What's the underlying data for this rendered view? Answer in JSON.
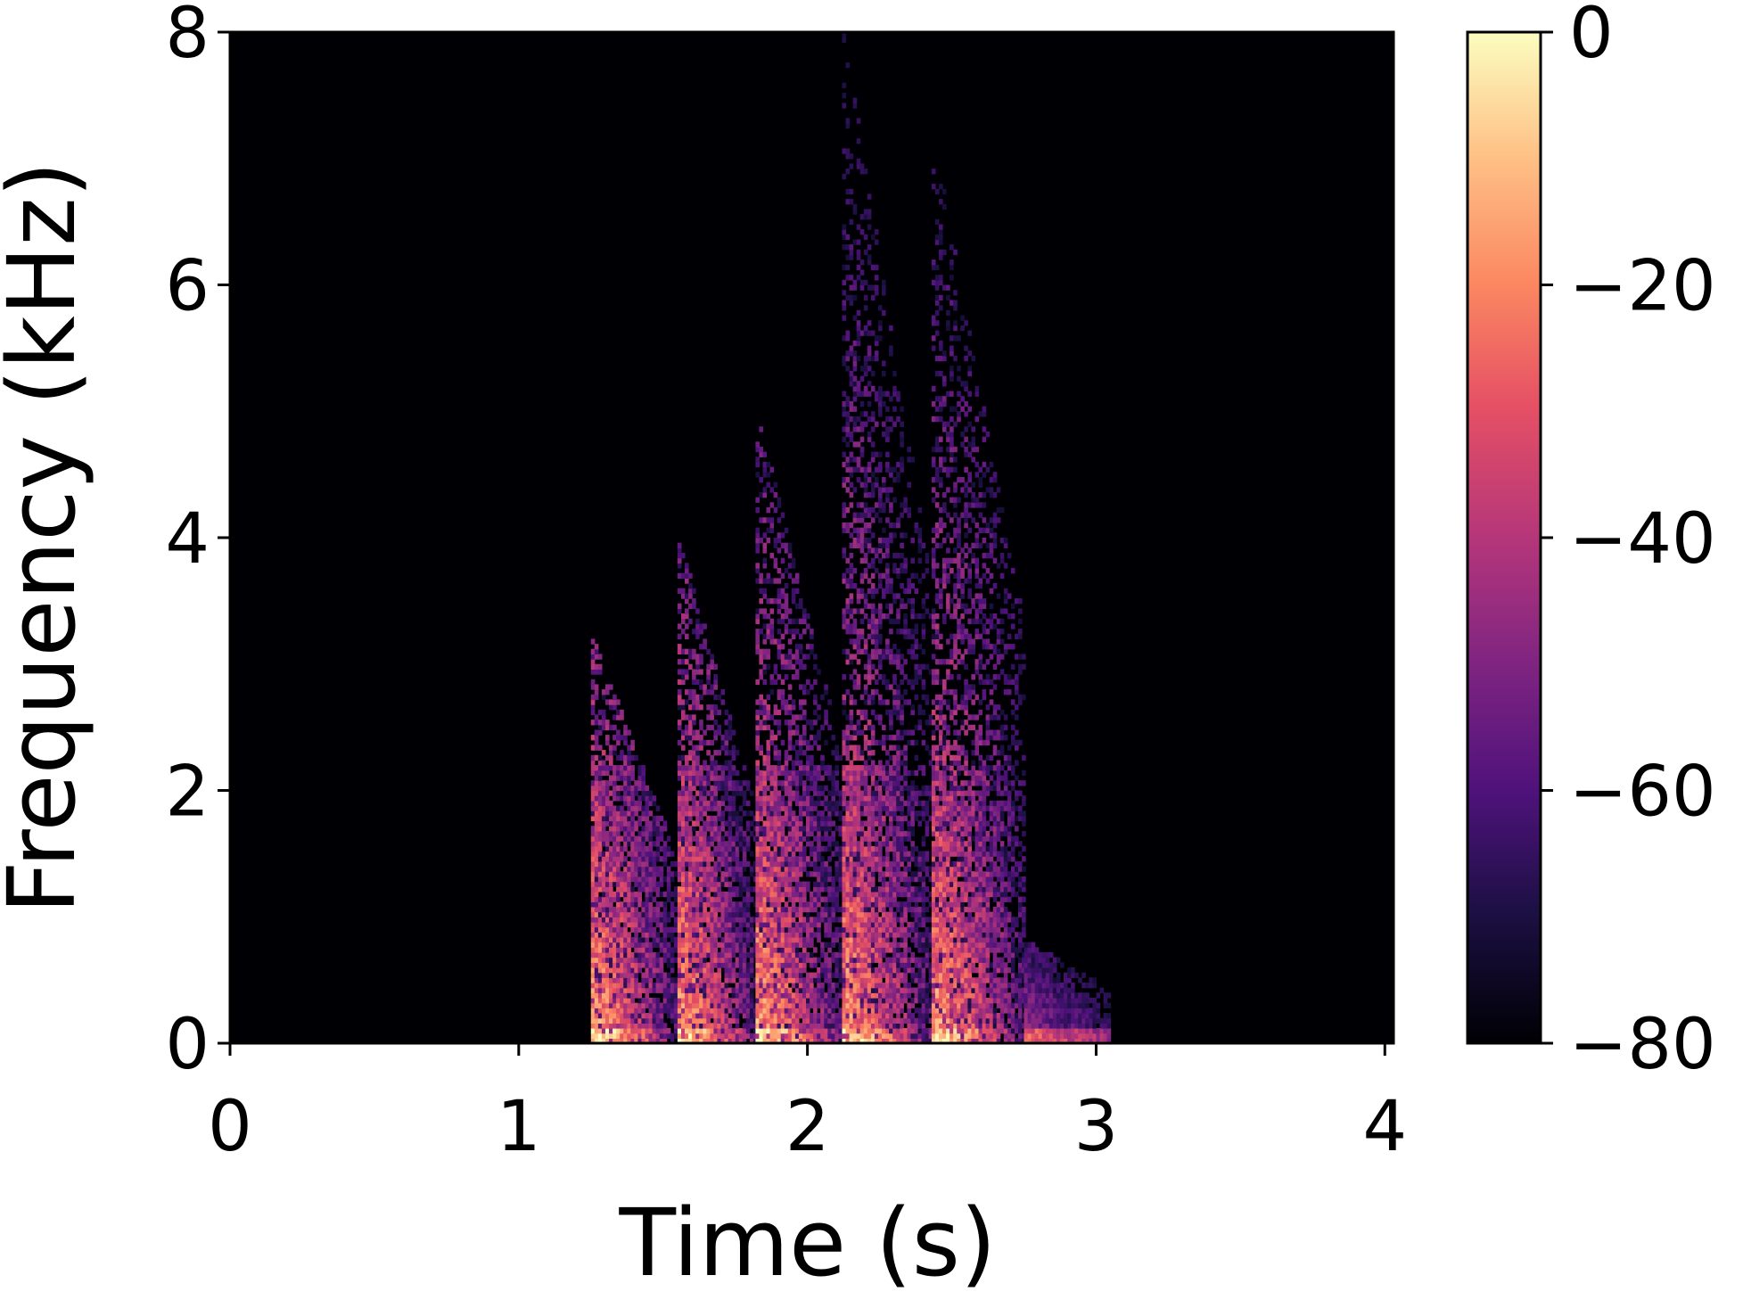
{
  "chart_data": {
    "type": "heatmap",
    "title": "",
    "xlabel": "Time (s)",
    "ylabel": "Frequency (kHz)",
    "xlim": [
      0,
      4.03
    ],
    "ylim": [
      0,
      8
    ],
    "x_ticks": [
      "0",
      "1",
      "2",
      "3",
      "4"
    ],
    "y_ticks": [
      "0",
      "2",
      "4",
      "6",
      "8"
    ],
    "colormap": "magma",
    "colorbar": {
      "range": [
        -80,
        0
      ],
      "ticks": [
        "0",
        "−20",
        "−40",
        "−60",
        "−80"
      ]
    },
    "events": [
      {
        "start": 1.25,
        "end": 1.55,
        "peak_freq_khz": 3.2
      },
      {
        "start": 1.55,
        "end": 1.82,
        "peak_freq_khz": 4.0
      },
      {
        "start": 1.82,
        "end": 2.12,
        "peak_freq_khz": 5.0
      },
      {
        "start": 2.12,
        "end": 2.43,
        "peak_freq_khz": 8.0
      },
      {
        "start": 2.43,
        "end": 2.75,
        "peak_freq_khz": 7.2
      }
    ],
    "tail": {
      "start": 2.75,
      "end": 3.05,
      "max_freq_khz": 0.8
    }
  }
}
